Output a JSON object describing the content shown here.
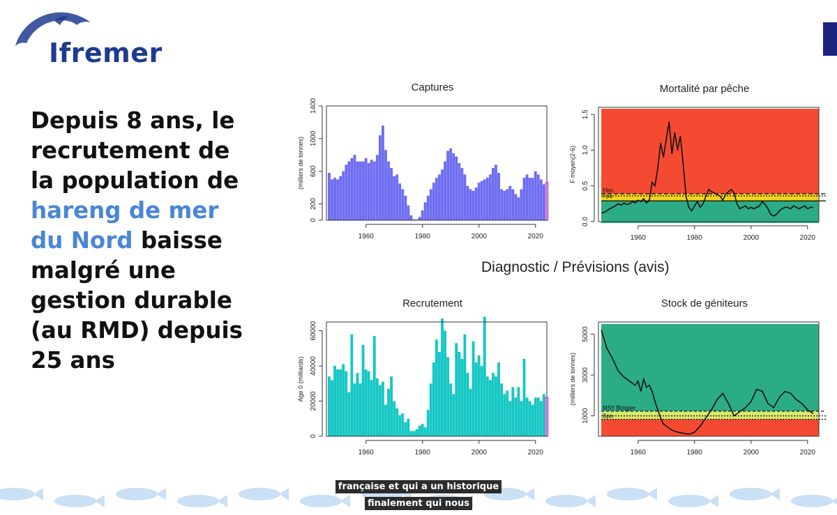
{
  "header": {
    "logo_text": "Ifremer",
    "logo_icon": "dolphin-icon"
  },
  "headline": {
    "line1": "Depuis 8 ans, le",
    "line2": "recrutement de",
    "line3": "la population de",
    "highlight1": "hareng de mer",
    "highlight2": "du Nord",
    "line5_rest": " baisse",
    "line6": "malgré une",
    "line7": "gestion durable",
    "line8": "(au RMD) depuis",
    "line9": "25 ans"
  },
  "section_title": "Diagnostic / Prévisions (avis)",
  "captions": [
    "française et qui a un historique",
    "finalement qui nous"
  ],
  "colors": {
    "captures": "#6e6df2",
    "recruitment": "#14c7c4",
    "danger": "#f44a32",
    "safe": "#2bab86",
    "band": "#f2d31a",
    "band_light": "#d8e86a",
    "last_bar": "#e040fb",
    "logo": "#1e3c8f",
    "headline_blue": "#4a86d6"
  },
  "chart_data": [
    {
      "type": "bar",
      "title": "Captures",
      "ylabel": "(milliers de tonnes)",
      "ylim": [
        0,
        1400
      ],
      "yticks": [
        "0",
        "200",
        "600",
        "1000",
        "1400"
      ],
      "xticks": [
        "1960",
        "1980",
        "2000",
        "2020"
      ],
      "xlim": [
        1946,
        2024
      ],
      "x_start": 1947,
      "values": [
        580,
        500,
        520,
        500,
        540,
        600,
        680,
        720,
        760,
        800,
        720,
        720,
        720,
        760,
        700,
        740,
        720,
        800,
        1040,
        1160,
        860,
        720,
        640,
        540,
        560,
        450,
        380,
        300,
        180,
        60,
        10,
        10,
        40,
        120,
        220,
        300,
        380,
        460,
        520,
        560,
        620,
        720,
        850,
        880,
        820,
        780,
        700,
        640,
        560,
        420,
        380,
        360,
        400,
        460,
        480,
        500,
        520,
        560,
        640,
        680,
        580,
        380,
        360,
        380,
        420,
        380,
        320,
        280,
        380,
        520,
        560,
        520,
        520,
        600,
        560,
        500,
        440
      ],
      "last_value": 460
    },
    {
      "type": "line",
      "title": "Mortalité par pêche",
      "ylabel": "F moyen(2-6)",
      "ylim": [
        0,
        1.6
      ],
      "yticks": [
        "0.0",
        "0.5",
        "1.0",
        "1.5"
      ],
      "xticks": [
        "1960",
        "1980",
        "2000",
        "2020"
      ],
      "xlim": [
        1946,
        2024
      ],
      "reference_labels": [
        "Flim",
        "Fpa",
        "FMSY"
      ],
      "reference_values": [
        0.39,
        0.36,
        0.29
      ],
      "x": [
        1947,
        1948,
        1949,
        1950,
        1951,
        1952,
        1953,
        1954,
        1955,
        1956,
        1957,
        1958,
        1959,
        1960,
        1961,
        1962,
        1963,
        1964,
        1965,
        1966,
        1967,
        1968,
        1969,
        1970,
        1971,
        1972,
        1973,
        1974,
        1975,
        1976,
        1977,
        1978,
        1979,
        1980,
        1981,
        1982,
        1983,
        1984,
        1985,
        1986,
        1987,
        1988,
        1989,
        1990,
        1991,
        1992,
        1993,
        1994,
        1995,
        1996,
        1997,
        1998,
        1999,
        2000,
        2001,
        2002,
        2003,
        2004,
        2005,
        2006,
        2007,
        2008,
        2009,
        2010,
        2011,
        2012,
        2013,
        2014,
        2015,
        2016,
        2017,
        2018,
        2019,
        2020,
        2021,
        2022
      ],
      "y": [
        0.12,
        0.13,
        0.15,
        0.18,
        0.2,
        0.22,
        0.25,
        0.23,
        0.26,
        0.24,
        0.25,
        0.28,
        0.26,
        0.3,
        0.28,
        0.32,
        0.26,
        0.3,
        0.55,
        0.5,
        0.75,
        1.1,
        0.9,
        1.15,
        1.4,
        0.95,
        1.25,
        1.0,
        1.2,
        0.8,
        0.35,
        0.2,
        0.15,
        0.22,
        0.28,
        0.2,
        0.25,
        0.35,
        0.45,
        0.42,
        0.4,
        0.38,
        0.36,
        0.3,
        0.38,
        0.42,
        0.45,
        0.4,
        0.25,
        0.18,
        0.2,
        0.22,
        0.18,
        0.2,
        0.18,
        0.2,
        0.22,
        0.28,
        0.24,
        0.18,
        0.1,
        0.08,
        0.1,
        0.15,
        0.18,
        0.2,
        0.2,
        0.18,
        0.22,
        0.2,
        0.18,
        0.2,
        0.22,
        0.18,
        0.2,
        0.2
      ]
    },
    {
      "type": "bar",
      "title": "Recrutement",
      "ylabel": "Age 0 (milliards)",
      "ylim": [
        0,
        65000
      ],
      "yticks": [
        "0",
        "20000",
        "40000",
        "60000"
      ],
      "xticks": [
        "1960",
        "1980",
        "2000",
        "2020"
      ],
      "xlim": [
        1946,
        2024
      ],
      "x_start": 1947,
      "values": [
        34000,
        32000,
        40000,
        38000,
        38000,
        41000,
        37000,
        25000,
        58000,
        30000,
        36000,
        30000,
        52000,
        38000,
        37000,
        32000,
        57000,
        33000,
        29000,
        31000,
        18000,
        27000,
        34000,
        20000,
        16000,
        12000,
        13000,
        8000,
        10000,
        3000,
        3000,
        4000,
        6000,
        7000,
        5000,
        15000,
        30000,
        42000,
        55000,
        48000,
        67000,
        60000,
        45000,
        30000,
        24000,
        53000,
        48000,
        44000,
        58000,
        36000,
        27000,
        54000,
        42000,
        46000,
        40000,
        68000,
        34000,
        32000,
        36000,
        34000,
        42000,
        30000,
        24000,
        26000,
        20000,
        28000,
        22000,
        28000,
        20000,
        44000,
        22000,
        20000,
        18000,
        22000,
        22000,
        20000,
        24000
      ],
      "last_value": 22000
    },
    {
      "type": "line",
      "title": "Stock de géniteurs",
      "ylabel": "(milliers de tonnes)",
      "ylim": [
        0,
        5600
      ],
      "yticks": [
        "1000",
        "3000",
        "5000"
      ],
      "xticks": [
        "1960",
        "1980",
        "2000",
        "2020"
      ],
      "xlim": [
        1946,
        2024
      ],
      "reference_labels": [
        "MSY Btrigger",
        "Bpa",
        "Blim"
      ],
      "reference_values": [
        1230,
        1000,
        830
      ],
      "x": [
        1947,
        1949,
        1951,
        1953,
        1955,
        1957,
        1959,
        1960,
        1961,
        1962,
        1963,
        1964,
        1965,
        1966,
        1967,
        1968,
        1969,
        1970,
        1972,
        1974,
        1976,
        1978,
        1980,
        1982,
        1984,
        1986,
        1988,
        1990,
        1992,
        1994,
        1996,
        1998,
        2000,
        2002,
        2004,
        2006,
        2008,
        2010,
        2012,
        2014,
        2016,
        2018,
        2020,
        2022
      ],
      "y": [
        5200,
        4300,
        3800,
        3200,
        2900,
        2700,
        2500,
        2700,
        2200,
        2800,
        2400,
        2500,
        2200,
        1700,
        1300,
        900,
        600,
        500,
        300,
        200,
        150,
        100,
        200,
        500,
        900,
        1300,
        1800,
        2100,
        1600,
        1000,
        1200,
        1400,
        1700,
        2300,
        2200,
        1600,
        1400,
        1900,
        2200,
        2100,
        1800,
        1600,
        1300,
        1100
      ]
    }
  ]
}
